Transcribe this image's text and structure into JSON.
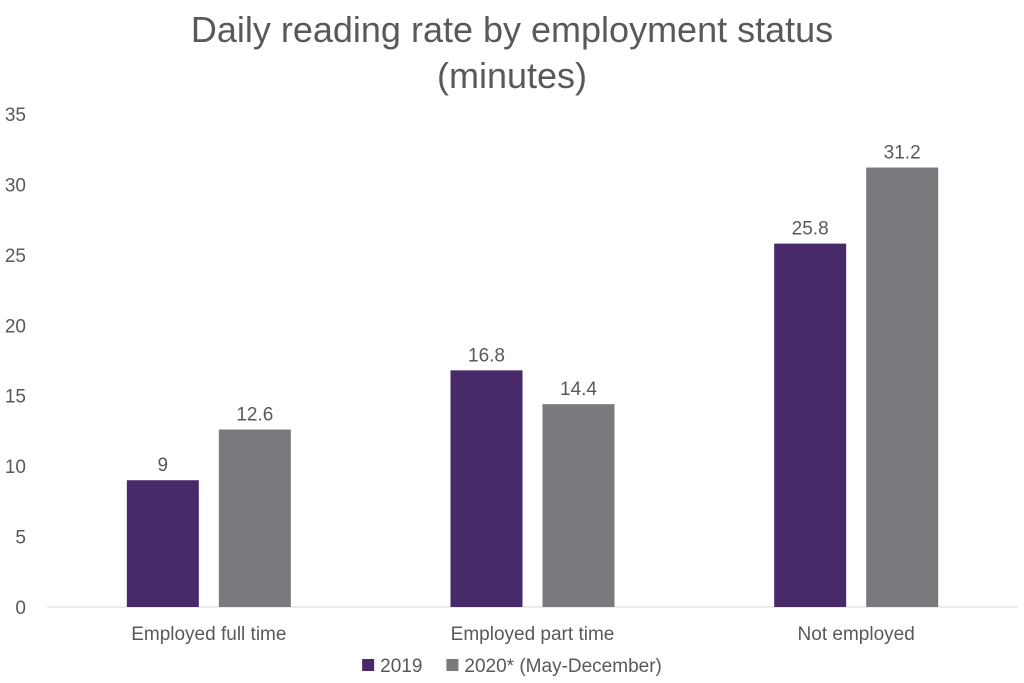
{
  "chart_data": {
    "type": "bar",
    "title_lines": [
      "Daily reading rate by employment status",
      "(minutes)"
    ],
    "categories": [
      "Employed full time",
      "Employed part time",
      "Not employed"
    ],
    "series": [
      {
        "name": "2019",
        "values": [
          9,
          16.8,
          25.8
        ],
        "color": "#482a6a"
      },
      {
        "name": "2020* (May-December)",
        "values": [
          12.6,
          14.4,
          31.2
        ],
        "color": "#7a797d"
      }
    ],
    "data_labels": [
      [
        "9",
        "16.8",
        "25.8"
      ],
      [
        "12.6",
        "14.4",
        "31.2"
      ]
    ],
    "y_ticks": [
      "0",
      "5",
      "10",
      "15",
      "20",
      "25",
      "30",
      "35"
    ],
    "ylim": [
      0,
      35
    ],
    "grid": false,
    "legend_position": "bottom"
  }
}
